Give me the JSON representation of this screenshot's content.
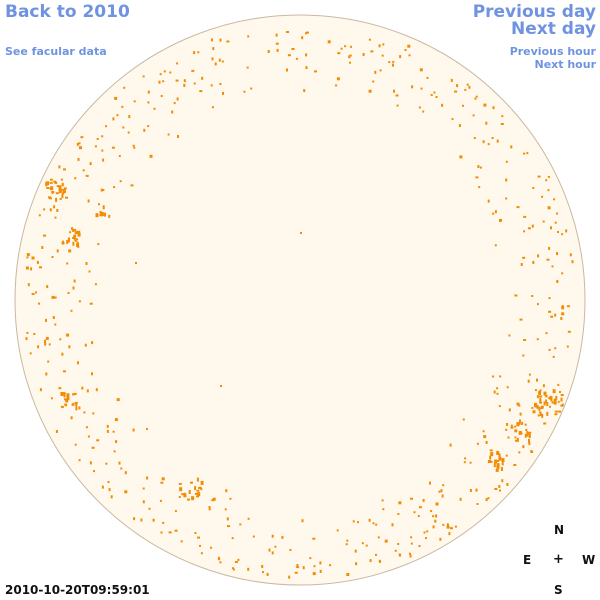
{
  "links": {
    "back": "Back to 2010",
    "facular": "See facular data",
    "previous_day": "Previous day",
    "next_day": "Next day",
    "previous_hour": "Previous hour",
    "next_hour": "Next hour"
  },
  "compass": {
    "north": "N",
    "east": "E",
    "center": "+",
    "west": "W",
    "south": "S"
  },
  "timestamp": "2010-10-20T09:59:01",
  "colors": {
    "disk_fill": "#fff8ec",
    "disk_edge": "#c8b9a3",
    "spot": "#f28c05",
    "link": "#6f93e0"
  }
}
